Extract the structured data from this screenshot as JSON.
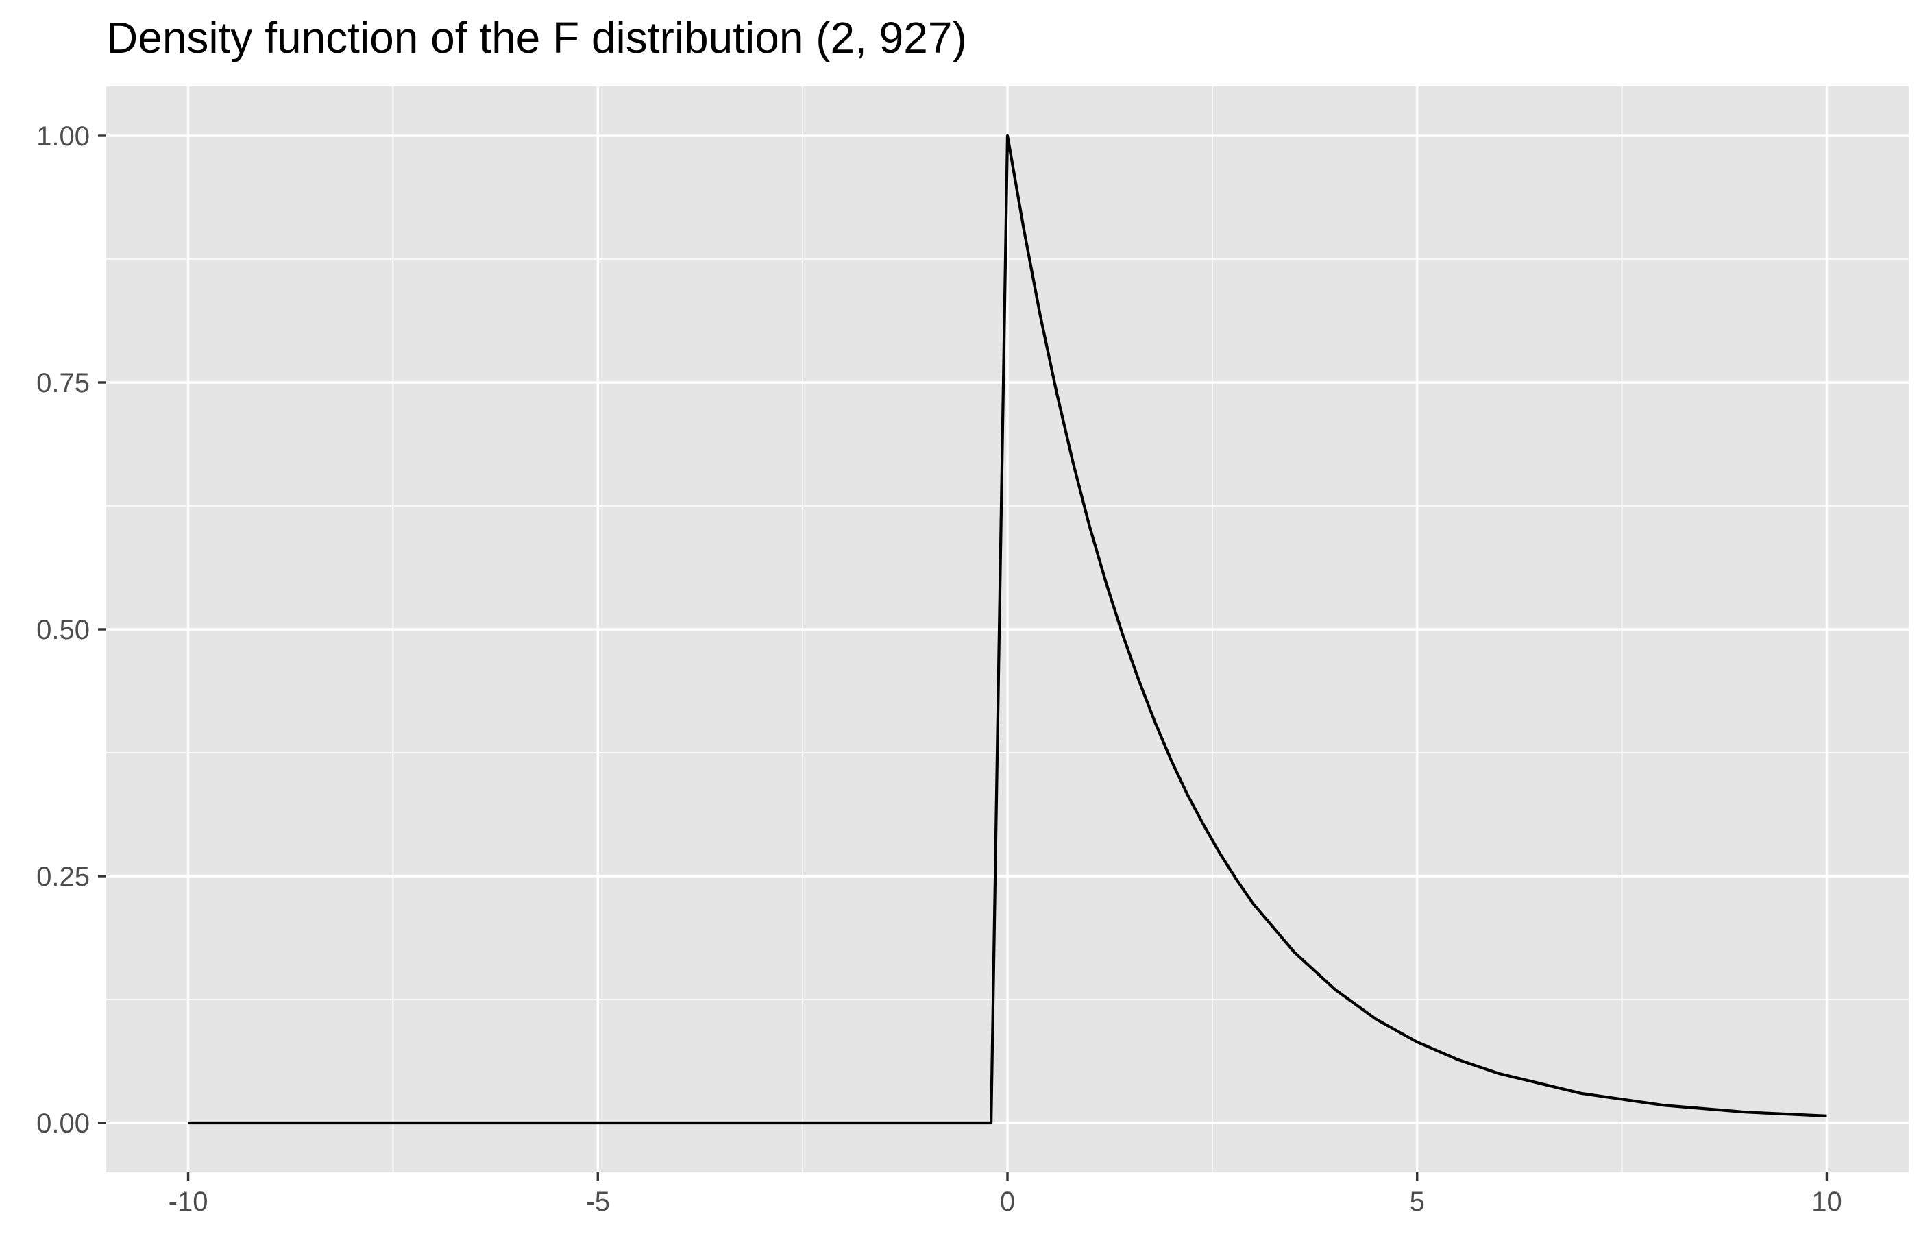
{
  "chart_data": {
    "type": "line",
    "title": "Density function of the F distribution (2, 927)",
    "xlabel": "",
    "ylabel": "",
    "xlim": [
      -11,
      11
    ],
    "ylim": [
      -0.05,
      1.05
    ],
    "x_ticks": [
      -10,
      -5,
      0,
      5,
      10
    ],
    "x_tick_labels": [
      "-10",
      "-5",
      "0",
      "5",
      "10"
    ],
    "y_ticks": [
      0,
      0.25,
      0.5,
      0.75,
      1
    ],
    "y_tick_labels": [
      "0.00",
      "0.25",
      "0.50",
      "0.75",
      "1.00"
    ],
    "grid": true,
    "series": [
      {
        "x": [
          -10,
          -5,
          -0.2,
          0,
          0.2,
          0.4,
          0.6,
          0.8,
          1.0,
          1.2,
          1.4,
          1.6,
          1.8,
          2.0,
          2.2,
          2.4,
          2.6,
          2.8,
          3.0,
          3.5,
          4.0,
          4.5,
          5.0,
          5.5,
          6.0,
          7.0,
          8.0,
          9.0,
          10.0
        ],
        "y": [
          0,
          0,
          0,
          1.0,
          0.905,
          0.818,
          0.74,
          0.669,
          0.605,
          0.548,
          0.496,
          0.449,
          0.406,
          0.367,
          0.332,
          0.301,
          0.272,
          0.246,
          0.222,
          0.173,
          0.135,
          0.105,
          0.082,
          0.064,
          0.05,
          0.03,
          0.018,
          0.011,
          0.007
        ],
        "color": "#000000"
      }
    ]
  },
  "style": {
    "panel_background": "#e5e5e5",
    "grid_color": "#ffffff",
    "line_color": "#000000",
    "tick_text_color": "#4d4d4d"
  }
}
